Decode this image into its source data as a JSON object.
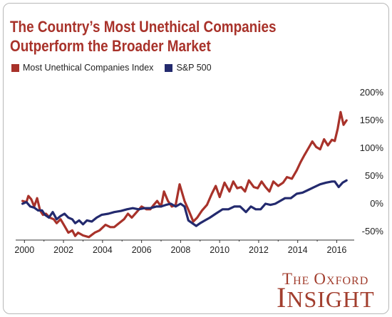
{
  "chart_data": {
    "type": "line",
    "title": "The Country’s Most Unethical Companies Outperform the Broader Market",
    "title_lines": [
      "The Country’s Most Unethical Companies",
      "Outperform the Broader Market"
    ],
    "xlabel": "",
    "ylabel": "",
    "xlim": [
      1999.55,
      2016.75
    ],
    "ylim": [
      -50,
      200
    ],
    "x_ticks": [
      2000,
      2002,
      2004,
      2006,
      2008,
      2010,
      2012,
      2014,
      2016
    ],
    "y_ticks": [
      -50,
      0,
      50,
      100,
      150,
      200
    ],
    "y_tick_labels": [
      "-50%",
      "0%",
      "50%",
      "100%",
      "150%",
      "200%"
    ],
    "grid": false,
    "legend_position": "top-left",
    "series": [
      {
        "name": "Most Unethical Companies Index",
        "color": "#a8322a",
        "x": [
          1999.9,
          2000.1,
          2000.2,
          2000.35,
          2000.5,
          2000.65,
          2000.8,
          2000.95,
          2001.1,
          2001.3,
          2001.5,
          2001.65,
          2001.85,
          2002.05,
          2002.25,
          2002.45,
          2002.6,
          2002.75,
          2003.0,
          2003.3,
          2003.6,
          2003.85,
          2004.15,
          2004.4,
          2004.6,
          2004.85,
          2005.1,
          2005.3,
          2005.5,
          2005.75,
          2006.0,
          2006.25,
          2006.45,
          2006.6,
          2006.8,
          2007.0,
          2007.15,
          2007.35,
          2007.55,
          2007.75,
          2007.95,
          2008.2,
          2008.45,
          2008.65,
          2008.85,
          2009.1,
          2009.35,
          2009.6,
          2009.8,
          2010.0,
          2010.25,
          2010.5,
          2010.7,
          2010.9,
          2011.1,
          2011.3,
          2011.5,
          2011.75,
          2011.95,
          2012.15,
          2012.35,
          2012.55,
          2012.75,
          2013.0,
          2013.25,
          2013.45,
          2013.7,
          2013.95,
          2014.15,
          2014.35,
          2014.55,
          2014.75,
          2014.95,
          2015.15,
          2015.35,
          2015.55,
          2015.75,
          2015.9,
          2016.05,
          2016.2,
          2016.35,
          2016.5
        ],
        "values": [
          5,
          3,
          14,
          8,
          -5,
          10,
          -12,
          -20,
          -18,
          -25,
          -28,
          -35,
          -28,
          -40,
          -52,
          -48,
          -58,
          -52,
          -57,
          -60,
          -52,
          -48,
          -38,
          -42,
          -42,
          -35,
          -28,
          -18,
          -25,
          -15,
          -5,
          -10,
          -10,
          -3,
          5,
          -5,
          22,
          5,
          -5,
          -2,
          35,
          5,
          -15,
          -32,
          -25,
          -12,
          -2,
          18,
          32,
          12,
          38,
          22,
          40,
          28,
          30,
          22,
          42,
          30,
          28,
          40,
          30,
          22,
          40,
          32,
          38,
          48,
          45,
          60,
          75,
          88,
          100,
          112,
          102,
          98,
          116,
          105,
          115,
          113,
          135,
          165,
          142,
          150
        ]
      },
      {
        "name": "S&P 500",
        "color": "#232a6e",
        "x": [
          1999.9,
          2000.1,
          2000.3,
          2000.5,
          2000.7,
          2000.9,
          2001.05,
          2001.25,
          2001.45,
          2001.65,
          2001.85,
          2002.05,
          2002.25,
          2002.45,
          2002.6,
          2002.8,
          2003.0,
          2003.2,
          2003.45,
          2003.7,
          2003.95,
          2004.3,
          2004.6,
          2004.95,
          2005.25,
          2005.55,
          2005.85,
          2006.15,
          2006.45,
          2006.75,
          2007.0,
          2007.25,
          2007.5,
          2007.75,
          2008.0,
          2008.2,
          2008.4,
          2008.6,
          2008.8,
          2009.0,
          2009.25,
          2009.5,
          2009.8,
          2010.15,
          2010.45,
          2010.75,
          2011.05,
          2011.35,
          2011.6,
          2011.85,
          2012.1,
          2012.35,
          2012.6,
          2012.85,
          2013.1,
          2013.35,
          2013.65,
          2013.95,
          2014.25,
          2014.55,
          2014.85,
          2015.15,
          2015.45,
          2015.75,
          2015.9,
          2016.1,
          2016.3,
          2016.5
        ],
        "values": [
          0,
          3,
          -5,
          -7,
          -12,
          -12,
          -20,
          -25,
          -15,
          -28,
          -22,
          -18,
          -25,
          -28,
          -35,
          -30,
          -37,
          -30,
          -32,
          -25,
          -20,
          -18,
          -15,
          -13,
          -10,
          -8,
          -10,
          -8,
          -8,
          -5,
          -5,
          -2,
          0,
          -5,
          0,
          -5,
          -30,
          -35,
          -40,
          -35,
          -30,
          -25,
          -18,
          -10,
          -10,
          -5,
          -5,
          -15,
          -5,
          -10,
          -10,
          0,
          -2,
          0,
          5,
          10,
          10,
          18,
          20,
          25,
          30,
          35,
          38,
          40,
          40,
          30,
          38,
          42
        ]
      }
    ]
  },
  "brand": {
    "line1": "The Oxford",
    "line2": "Insight"
  },
  "colors": {
    "title": "#a8322a",
    "brand": "#a23e2e",
    "axis": "#222222"
  }
}
